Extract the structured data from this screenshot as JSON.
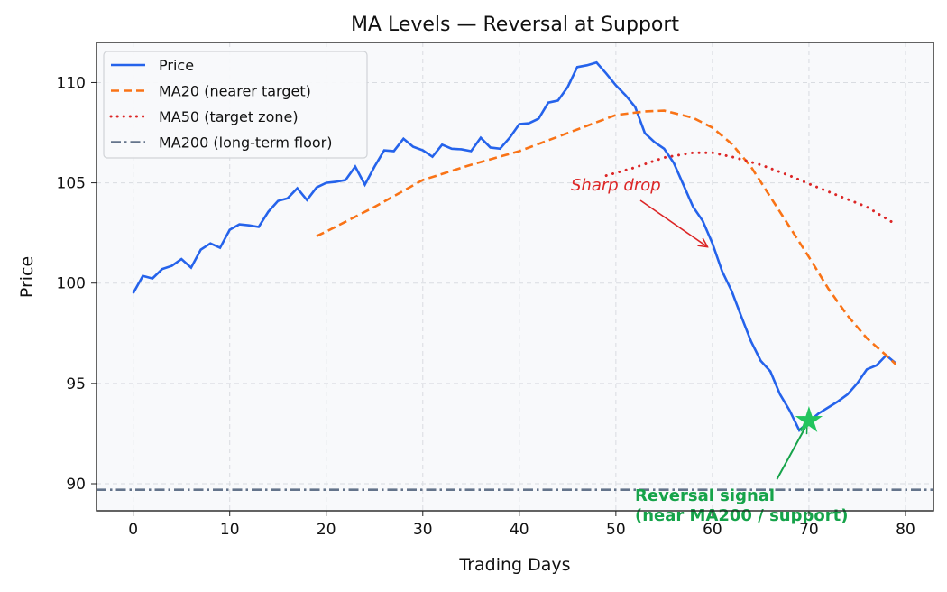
{
  "chart_data": {
    "type": "line",
    "title": "MA Levels — Reversal at Support",
    "xlabel": "Trading Days",
    "ylabel": "Price",
    "xlim": [
      -3.8,
      82.9
    ],
    "ylim": [
      88.65,
      112.0
    ],
    "xticks": [
      0,
      10,
      20,
      30,
      40,
      50,
      60,
      70,
      80
    ],
    "yticks": [
      90,
      95,
      100,
      105,
      110
    ],
    "grid": true,
    "legend_position": "top-left",
    "colors": {
      "price": "#2563eb",
      "ma20": "#f97316",
      "ma50": "#dc2626",
      "ma200": "#64748b",
      "reversal": "#16a34a",
      "star": "#22c55e",
      "background": "#f8f9fb"
    },
    "series": [
      {
        "name": "Price",
        "style": "solid",
        "x": [
          0,
          1,
          2,
          3,
          4,
          5,
          6,
          7,
          8,
          9,
          10,
          11,
          12,
          13,
          14,
          15,
          16,
          17,
          18,
          19,
          20,
          21,
          22,
          23,
          24,
          25,
          26,
          27,
          28,
          29,
          30,
          31,
          32,
          33,
          34,
          35,
          36,
          37,
          38,
          39,
          40,
          41,
          42,
          43,
          44,
          45,
          46,
          47,
          48,
          49,
          50,
          51,
          52,
          53,
          54,
          55,
          56,
          57,
          58,
          59,
          60,
          61,
          62,
          63,
          64,
          65,
          66,
          67,
          68,
          69,
          70,
          71,
          72,
          73,
          74,
          75,
          76,
          77,
          78,
          79
        ],
        "y": [
          99.5,
          100.36,
          100.23,
          100.7,
          100.86,
          101.2,
          100.77,
          101.67,
          101.98,
          101.76,
          102.66,
          102.93,
          102.88,
          102.8,
          103.56,
          104.1,
          104.23,
          104.73,
          104.14,
          104.77,
          105.0,
          105.05,
          105.14,
          105.81,
          104.91,
          105.81,
          106.62,
          106.58,
          107.2,
          106.8,
          106.62,
          106.3,
          106.9,
          106.7,
          106.67,
          106.58,
          107.25,
          106.76,
          106.7,
          107.25,
          107.93,
          107.97,
          108.2,
          109.0,
          109.1,
          109.77,
          110.77,
          110.86,
          111.0,
          110.45,
          109.86,
          109.37,
          108.78,
          107.48,
          107.03,
          106.7,
          105.99,
          104.9,
          103.8,
          103.1,
          101.98,
          100.6,
          99.6,
          98.33,
          97.1,
          96.13,
          95.6,
          94.46,
          93.65,
          92.66,
          93.1,
          93.5,
          93.8,
          94.1,
          94.45,
          95.0,
          95.7,
          95.9,
          96.4,
          96.0
        ]
      },
      {
        "name": "MA20 (nearer target)",
        "style": "dashed",
        "x": [
          19,
          20,
          25,
          30,
          35,
          40,
          45,
          50,
          53,
          55,
          58,
          60,
          62,
          64,
          66,
          68,
          70,
          72,
          74,
          76,
          78,
          79
        ],
        "y": [
          102.34,
          102.57,
          103.8,
          105.14,
          105.9,
          106.58,
          107.48,
          108.38,
          108.56,
          108.6,
          108.24,
          107.75,
          106.94,
          105.8,
          104.3,
          102.8,
          101.3,
          99.73,
          98.38,
          97.25,
          96.4,
          95.95
        ]
      },
      {
        "name": "MA50 (target zone)",
        "style": "dotted",
        "x": [
          49,
          52,
          55,
          58,
          60,
          62,
          65,
          68,
          70,
          73,
          76,
          79
        ],
        "y": [
          105.36,
          105.77,
          106.26,
          106.5,
          106.5,
          106.3,
          105.9,
          105.36,
          104.95,
          104.37,
          103.8,
          102.93
        ]
      },
      {
        "name": "MA200 (long-term floor)",
        "style": "dashdot",
        "hline": 89.7
      }
    ],
    "annotations": [
      {
        "text": "Sharp drop",
        "xy": [
          59.5,
          101.8
        ],
        "xytext": [
          50,
          104.9
        ]
      },
      {
        "text": "Reversal signal\n(near MA200 / support)",
        "xy": [
          70,
          93.15
        ],
        "xytext": [
          66.5,
          90.2
        ],
        "marker": "star"
      }
    ]
  }
}
